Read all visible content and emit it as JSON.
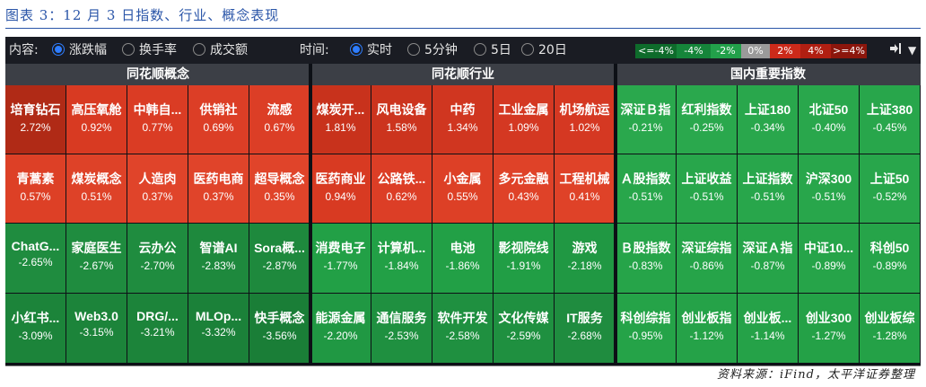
{
  "figure_title": "图表 3：12 月 3 日指数、行业、概念表现",
  "source": "资料来源：iFind，太平洋证券整理",
  "toolbar": {
    "content_label": "内容:",
    "content_options": [
      "涨跌幅",
      "换手率",
      "成交额"
    ],
    "content_selected": 0,
    "time_label": "时间:",
    "time_options": [
      "实时",
      "5分钟",
      "5日",
      "20日"
    ],
    "time_selected": 0,
    "legend": [
      {
        "label": "<=-4%",
        "color": "#0e6b2b"
      },
      {
        "label": "-4%",
        "color": "#15853a"
      },
      {
        "label": "-2%",
        "color": "#22a04a"
      },
      {
        "label": "0%",
        "color": "#9a9a9a"
      },
      {
        "label": "2%",
        "color": "#cc2a1a"
      },
      {
        "label": "4%",
        "color": "#b11f12"
      },
      {
        "label": ">=4%",
        "color": "#8c160c"
      }
    ],
    "export_icon": "export-icon",
    "menu_icon": "dropdown-arrow-icon"
  },
  "groups": [
    {
      "title": "同花顺概念",
      "cells": [
        {
          "name": "培育钻石",
          "pct": "2.72%",
          "color": "#b02a16"
        },
        {
          "name": "高压氧舱",
          "pct": "0.92%",
          "color": "#d83a22"
        },
        {
          "name": "中韩自...",
          "pct": "0.77%",
          "color": "#da3c24"
        },
        {
          "name": "供销社",
          "pct": "0.69%",
          "color": "#dc3e26"
        },
        {
          "name": "流感",
          "pct": "0.67%",
          "color": "#dc3e26"
        },
        {
          "name": "青蒿素",
          "pct": "0.57%",
          "color": "#dd4026"
        },
        {
          "name": "煤炭概念",
          "pct": "0.51%",
          "color": "#de4228"
        },
        {
          "name": "人造肉",
          "pct": "0.37%",
          "color": "#e0442a"
        },
        {
          "name": "医药电商",
          "pct": "0.37%",
          "color": "#e0442a"
        },
        {
          "name": "超导概念",
          "pct": "0.35%",
          "color": "#e0442a"
        },
        {
          "name": "ChatG...",
          "pct": "-2.65%",
          "color": "#1f8c3f"
        },
        {
          "name": "家庭医生",
          "pct": "-2.67%",
          "color": "#1f8c3f"
        },
        {
          "name": "云办公",
          "pct": "-2.70%",
          "color": "#1f8c3f"
        },
        {
          "name": "智谱AI",
          "pct": "-2.83%",
          "color": "#1e893d"
        },
        {
          "name": "Sora概...",
          "pct": "-2.87%",
          "color": "#1e893d"
        },
        {
          "name": "小红书...",
          "pct": "-3.09%",
          "color": "#1c843a"
        },
        {
          "name": "Web3.0",
          "pct": "-3.15%",
          "color": "#1c843a"
        },
        {
          "name": "DRG/...",
          "pct": "-3.21%",
          "color": "#1c843a"
        },
        {
          "name": "MLOp...",
          "pct": "-3.32%",
          "color": "#1b8139"
        },
        {
          "name": "快手概念",
          "pct": "-3.56%",
          "color": "#1a7e37"
        }
      ]
    },
    {
      "title": "同花顺行业",
      "cells": [
        {
          "name": "煤炭开...",
          "pct": "1.81%",
          "color": "#c8321c"
        },
        {
          "name": "风电设备",
          "pct": "1.58%",
          "color": "#cc341e"
        },
        {
          "name": "中药",
          "pct": "1.34%",
          "color": "#d03620"
        },
        {
          "name": "工业金属",
          "pct": "1.09%",
          "color": "#d43822"
        },
        {
          "name": "机场航运",
          "pct": "1.02%",
          "color": "#d53822"
        },
        {
          "name": "医药商业",
          "pct": "0.94%",
          "color": "#d83a22"
        },
        {
          "name": "公路铁...",
          "pct": "0.62%",
          "color": "#dc3e26"
        },
        {
          "name": "小金属",
          "pct": "0.55%",
          "color": "#dd4026"
        },
        {
          "name": "多元金融",
          "pct": "0.43%",
          "color": "#df4228"
        },
        {
          "name": "工程机械",
          "pct": "0.41%",
          "color": "#df4228"
        },
        {
          "name": "消费电子",
          "pct": "-1.77%",
          "color": "#22a046"
        },
        {
          "name": "计算机...",
          "pct": "-1.84%",
          "color": "#22a046"
        },
        {
          "name": "电池",
          "pct": "-1.86%",
          "color": "#22a046"
        },
        {
          "name": "影视院线",
          "pct": "-1.91%",
          "color": "#219e45"
        },
        {
          "name": "游戏",
          "pct": "-2.18%",
          "color": "#209843"
        },
        {
          "name": "能源金属",
          "pct": "-2.20%",
          "color": "#209843"
        },
        {
          "name": "通信服务",
          "pct": "-2.53%",
          "color": "#1f9040"
        },
        {
          "name": "软件开发",
          "pct": "-2.58%",
          "color": "#1f9040"
        },
        {
          "name": "文化传媒",
          "pct": "-2.59%",
          "color": "#1f9040"
        },
        {
          "name": "IT服务",
          "pct": "-2.68%",
          "color": "#1f8c3f"
        }
      ]
    },
    {
      "title": "国内重要指数",
      "cells": [
        {
          "name": "深证Ｂ指",
          "pct": "-0.21%",
          "color": "#2aa84d"
        },
        {
          "name": "红利指数",
          "pct": "-0.25%",
          "color": "#2aa84d"
        },
        {
          "name": "上证180",
          "pct": "-0.34%",
          "color": "#29a74c"
        },
        {
          "name": "北证50",
          "pct": "-0.40%",
          "color": "#29a74c"
        },
        {
          "name": "上证380",
          "pct": "-0.45%",
          "color": "#28a64b"
        },
        {
          "name": "Ａ股指数",
          "pct": "-0.51%",
          "color": "#28a64b"
        },
        {
          "name": "上证收益",
          "pct": "-0.51%",
          "color": "#28a64b"
        },
        {
          "name": "上证指数",
          "pct": "-0.51%",
          "color": "#28a64b"
        },
        {
          "name": "沪深300",
          "pct": "-0.51%",
          "color": "#28a64b"
        },
        {
          "name": "上证50",
          "pct": "-0.52%",
          "color": "#28a64b"
        },
        {
          "name": "Ｂ股指数",
          "pct": "-0.83%",
          "color": "#26a449"
        },
        {
          "name": "深证综指",
          "pct": "-0.86%",
          "color": "#26a449"
        },
        {
          "name": "深证Ａ指",
          "pct": "-0.87%",
          "color": "#26a449"
        },
        {
          "name": "中证10...",
          "pct": "-0.89%",
          "color": "#26a449"
        },
        {
          "name": "科创50",
          "pct": "-0.89%",
          "color": "#26a449"
        },
        {
          "name": "科创综指",
          "pct": "-0.95%",
          "color": "#25a348"
        },
        {
          "name": "创业板指",
          "pct": "-1.12%",
          "color": "#25a248"
        },
        {
          "name": "创业板...",
          "pct": "-1.14%",
          "color": "#25a248"
        },
        {
          "name": "创业300",
          "pct": "-1.27%",
          "color": "#24a147"
        },
        {
          "name": "创业板综",
          "pct": "-1.28%",
          "color": "#24a147"
        }
      ]
    }
  ]
}
